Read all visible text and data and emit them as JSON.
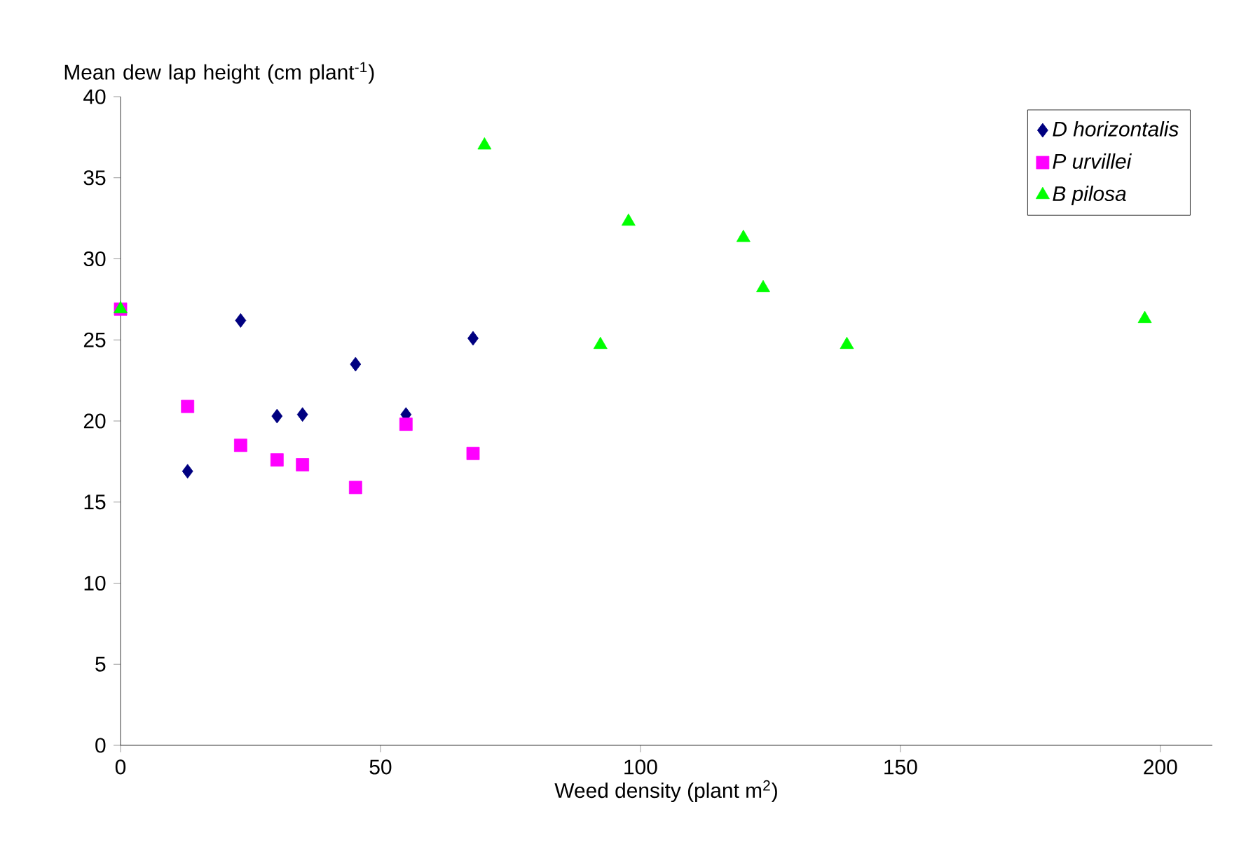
{
  "chart_data": {
    "type": "scatter",
    "xlabel": "Weed density (plant m$^{2}$)",
    "ylabel": "Mean dew lap height (cm plant$^{-1}$)",
    "xlim": [
      0,
      210
    ],
    "ylim": [
      0,
      40
    ],
    "xticks": [
      0,
      50,
      100,
      150,
      200
    ],
    "yticks": [
      0,
      5,
      10,
      15,
      20,
      25,
      30,
      35,
      40
    ],
    "legend": "top right",
    "grid": false,
    "series": [
      {
        "name": "D horizontalis",
        "color": "#000080",
        "marker": "diamond",
        "x": [
          12.9,
          23.1,
          30.1,
          35,
          45.2,
          54.9,
          67.8
        ],
        "values": [
          16.9,
          26.2,
          20.3,
          20.4,
          23.5,
          20.4,
          25.1
        ]
      },
      {
        "name": "P urvillei",
        "color": "#ff00ff",
        "marker": "square",
        "x": [
          0,
          12.9,
          23.1,
          30.1,
          35,
          45.2,
          54.9,
          67.8
        ],
        "values": [
          26.9,
          20.9,
          18.5,
          17.6,
          17.3,
          15.9,
          19.8,
          18.0
        ]
      },
      {
        "name": "B pilosa",
        "color": "#00ff00",
        "marker": "triangle",
        "x": [
          0,
          70,
          92.3,
          97.7,
          119.8,
          123.6,
          139.7,
          197
        ],
        "values": [
          26.9,
          37,
          24.7,
          32.3,
          31.3,
          28.2,
          24.7,
          26.3
        ]
      }
    ]
  }
}
